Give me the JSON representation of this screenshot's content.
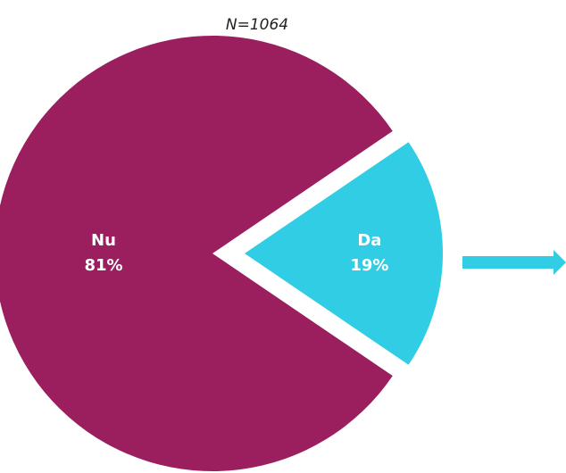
{
  "chart_data": {
    "type": "pie",
    "subtitle": "N=1064",
    "categories": [
      "Da",
      "Nu"
    ],
    "values": [
      19,
      81
    ],
    "value_labels": [
      "19%",
      "81%"
    ],
    "colors": [
      "#30cde4",
      "#9b1f5e"
    ]
  }
}
